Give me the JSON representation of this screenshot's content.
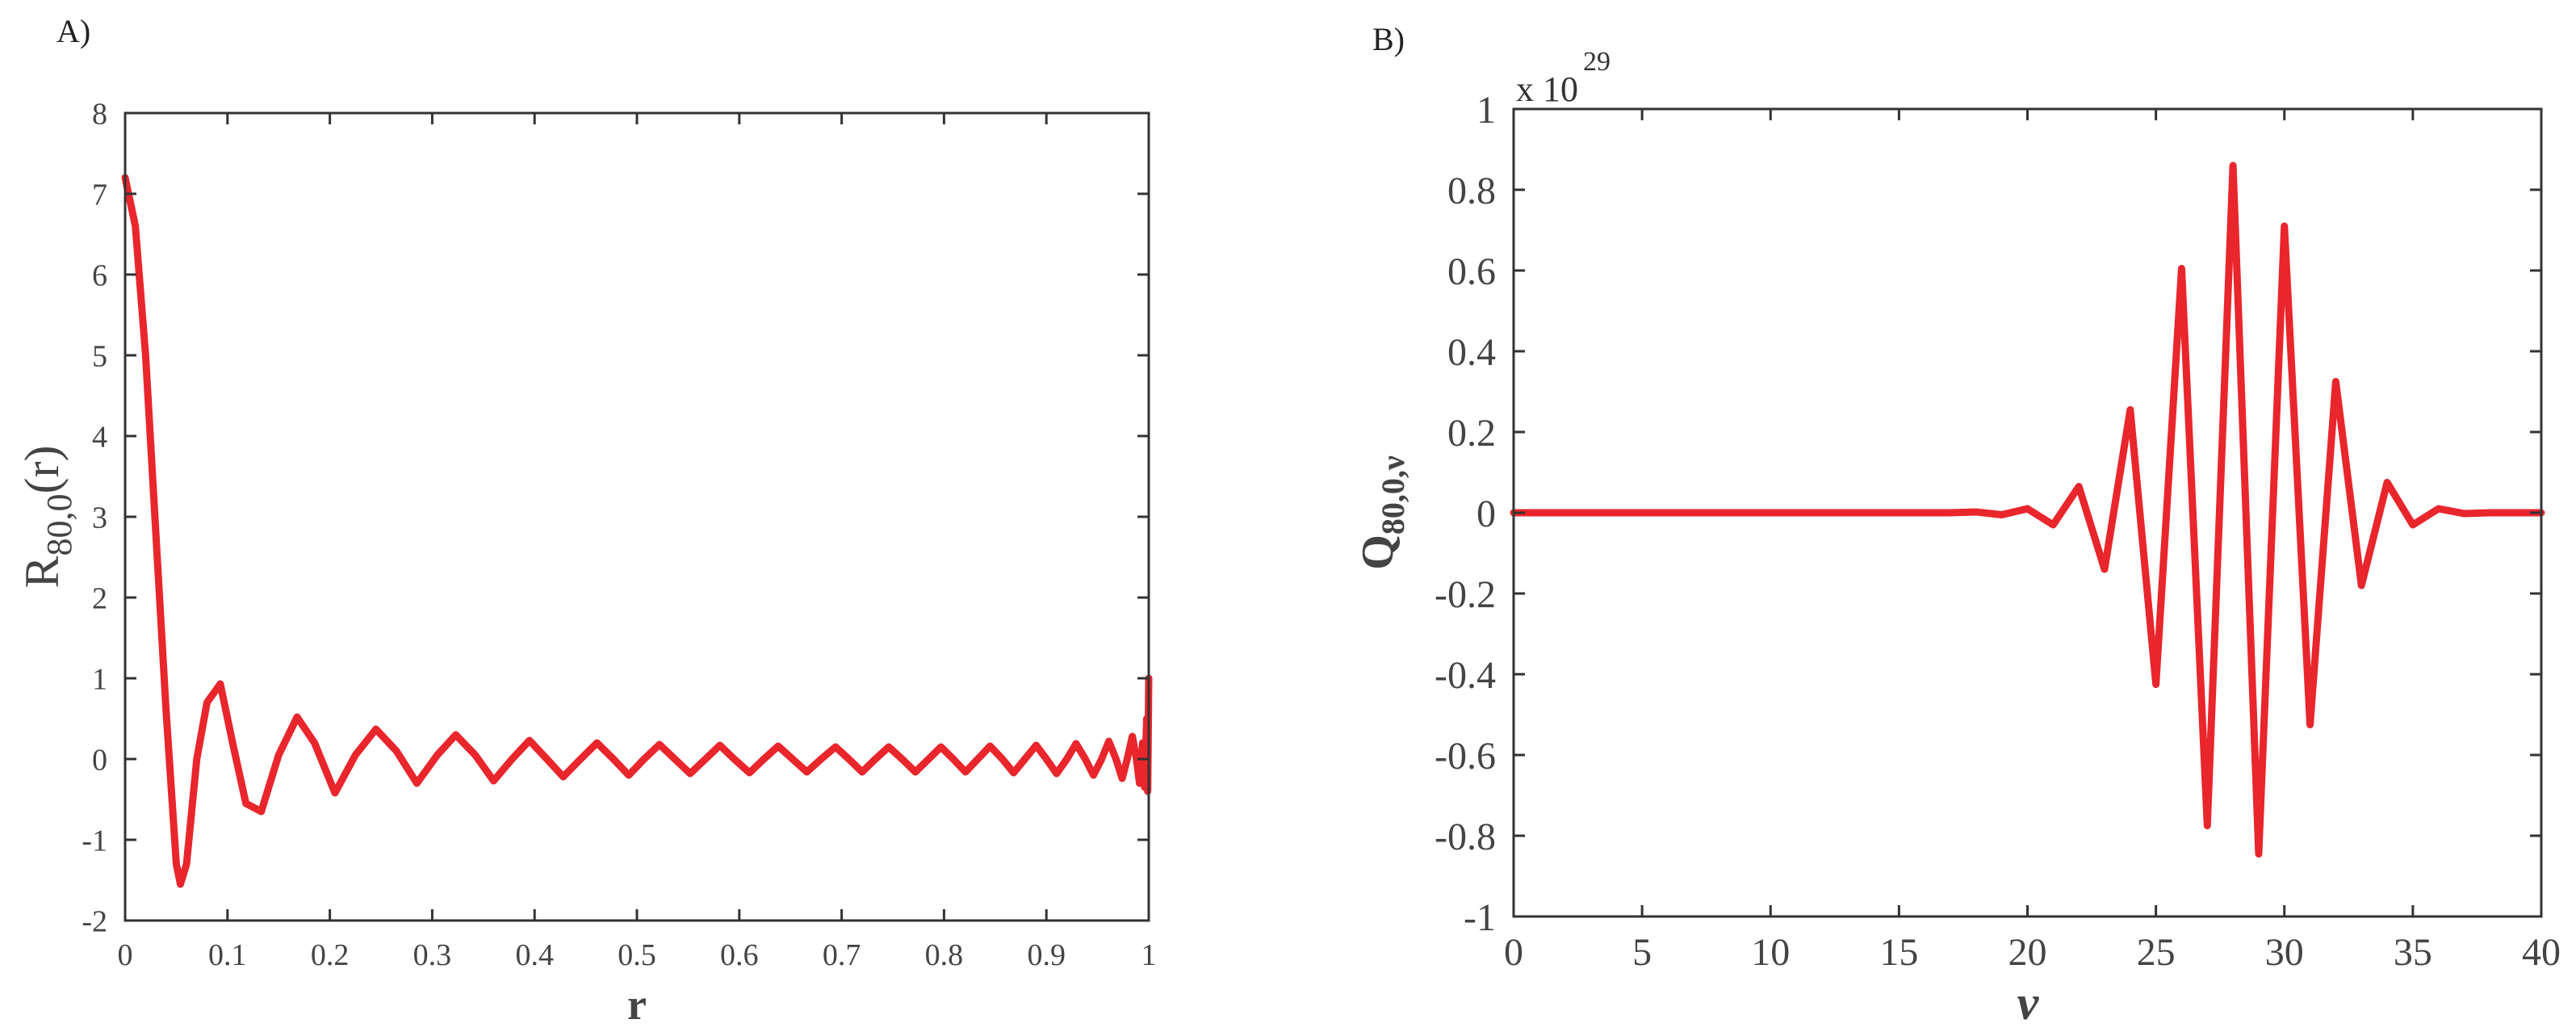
{
  "chart_data": [
    {
      "panel_label": "A)",
      "type": "line",
      "title": "",
      "xlabel": "r",
      "ylabel": {
        "base": "R",
        "subscript": "80,0",
        "suffix": "(r)"
      },
      "xlim": [
        0,
        1
      ],
      "ylim": [
        -2,
        8
      ],
      "xticks": [
        0,
        0.1,
        0.2,
        0.3,
        0.4,
        0.5,
        0.6,
        0.7,
        0.8,
        0.9,
        1
      ],
      "xtick_labels": [
        "0",
        "0.1",
        "0.2",
        "0.3",
        "0.4",
        "0.5",
        "0.6",
        "0.7",
        "0.8",
        "0.9",
        "1"
      ],
      "yticks": [
        -2,
        -1,
        0,
        1,
        2,
        3,
        4,
        5,
        6,
        7,
        8
      ],
      "ytick_labels": [
        "-2",
        "-1",
        "0",
        "1",
        "2",
        "3",
        "4",
        "5",
        "6",
        "7",
        "8"
      ],
      "grid": false,
      "color": "#e8262c",
      "series": [
        {
          "x": [
            0,
            0.01,
            0.02,
            0.03,
            0.04,
            0.05,
            0.054,
            0.06,
            0.07,
            0.08,
            0.093,
            0.105,
            0.118,
            0.133,
            0.15,
            0.168,
            0.185,
            0.205,
            0.225,
            0.245,
            0.265,
            0.285,
            0.305,
            0.323,
            0.342,
            0.36,
            0.378,
            0.395,
            0.412,
            0.428,
            0.445,
            0.461,
            0.477,
            0.492,
            0.507,
            0.522,
            0.537,
            0.552,
            0.567,
            0.581,
            0.595,
            0.61,
            0.624,
            0.638,
            0.652,
            0.666,
            0.68,
            0.694,
            0.707,
            0.72,
            0.733,
            0.746,
            0.759,
            0.772,
            0.785,
            0.797,
            0.809,
            0.821,
            0.833,
            0.845,
            0.857,
            0.868,
            0.879,
            0.89,
            0.9,
            0.91,
            0.92,
            0.929,
            0.938,
            0.946,
            0.954,
            0.961,
            0.968,
            0.974,
            0.979,
            0.984,
            0.988,
            0.991,
            0.994,
            0.996,
            0.998,
            0.999,
            1.0
          ],
          "y": [
            7.2,
            6.6,
            5.0,
            2.8,
            0.6,
            -1.3,
            -1.55,
            -1.3,
            0.0,
            0.7,
            0.93,
            0.2,
            -0.55,
            -0.65,
            0.05,
            0.52,
            0.2,
            -0.42,
            0.05,
            0.37,
            0.1,
            -0.3,
            0.05,
            0.3,
            0.05,
            -0.27,
            0.0,
            0.23,
            0.0,
            -0.22,
            0.0,
            0.2,
            0.0,
            -0.2,
            0.0,
            0.18,
            0.0,
            -0.18,
            0.0,
            0.17,
            0.0,
            -0.17,
            0.0,
            0.16,
            0.0,
            -0.16,
            0.0,
            0.15,
            0.0,
            -0.16,
            0.0,
            0.15,
            0.0,
            -0.16,
            0.0,
            0.15,
            0.0,
            -0.16,
            0.0,
            0.16,
            0.0,
            -0.17,
            0.0,
            0.17,
            0.0,
            -0.18,
            0.0,
            0.19,
            0.0,
            -0.2,
            0.0,
            0.22,
            0.0,
            -0.24,
            0.0,
            0.28,
            0.0,
            -0.3,
            0.2,
            -0.35,
            0.5,
            -0.4,
            1.0
          ]
        }
      ]
    },
    {
      "panel_label": "B)",
      "type": "line",
      "title": "",
      "xlabel": "ν",
      "ylabel": {
        "base": "Q",
        "subscript": "80,0,ν"
      },
      "exponent_label": {
        "base": "x 10",
        "power": "29"
      },
      "xlim": [
        0,
        40
      ],
      "ylim": [
        -1,
        1
      ],
      "xticks": [
        0,
        5,
        10,
        15,
        20,
        25,
        30,
        35,
        40
      ],
      "xtick_labels": [
        "0",
        "5",
        "10",
        "15",
        "20",
        "25",
        "30",
        "35",
        "40"
      ],
      "yticks": [
        -1,
        -0.8,
        -0.6,
        -0.4,
        -0.2,
        0,
        0.2,
        0.4,
        0.6,
        0.8,
        1
      ],
      "ytick_labels": [
        "-1",
        "-0.8",
        "-0.6",
        "-0.4",
        "-0.2",
        "0",
        "0.2",
        "0.4",
        "0.6",
        "0.8",
        "1"
      ],
      "grid": false,
      "color": "#e8262c",
      "series": [
        {
          "x": [
            0,
            1,
            2,
            3,
            4,
            5,
            6,
            7,
            8,
            9,
            10,
            11,
            12,
            13,
            14,
            15,
            16,
            17,
            18,
            19,
            20,
            21,
            22,
            23,
            24,
            25,
            26,
            27,
            28,
            29,
            30,
            31,
            32,
            33,
            34,
            35,
            36,
            37,
            38,
            39,
            40
          ],
          "y": [
            0,
            0,
            0,
            0,
            0,
            0,
            0,
            0,
            0,
            0,
            0,
            0,
            0,
            0,
            0,
            0,
            0,
            0,
            0.002,
            -0.005,
            0.01,
            -0.03,
            0.065,
            -0.14,
            0.255,
            -0.425,
            0.605,
            -0.775,
            0.86,
            -0.845,
            0.71,
            -0.525,
            0.325,
            -0.18,
            0.075,
            -0.03,
            0.01,
            -0.002,
            0,
            0,
            0
          ]
        }
      ]
    }
  ]
}
